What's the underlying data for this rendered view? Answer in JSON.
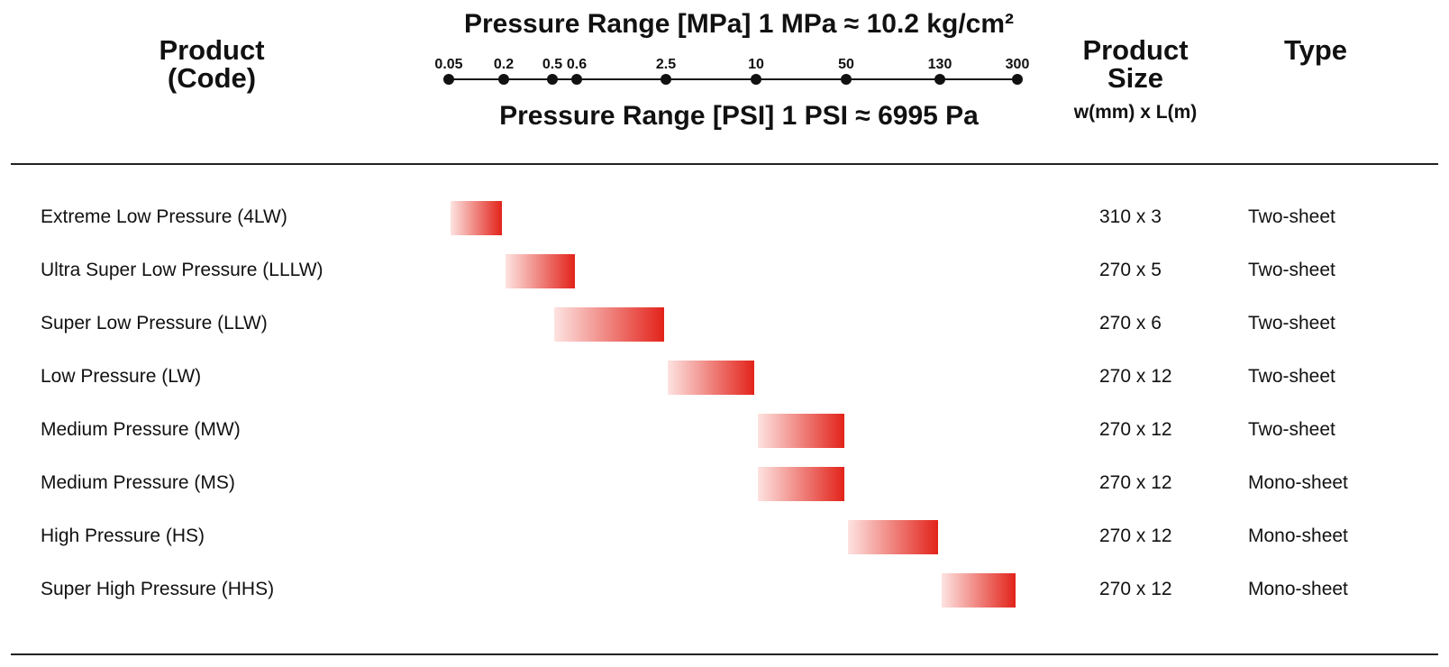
{
  "headers": {
    "product_line1": "Product",
    "product_line2": "(Code)",
    "size_line1": "Product",
    "size_line2": "Size",
    "size_unit": "w(mm) x L(m)",
    "type": "Type"
  },
  "chart_data": {
    "type": "bar",
    "orientation": "horizontal-range",
    "title_top": "Pressure Range [MPa] 1 MPa ≈ 10.2 kg/cm²",
    "title_bottom": "Pressure Range [PSI] 1 PSI ≈ 6995 Pa",
    "ticks": [
      "0.05",
      "0.2",
      "0.5",
      "0.6",
      "2.5",
      "10",
      "50",
      "130",
      "300"
    ],
    "colors": {
      "bar_start": "#fde3e1",
      "bar_end": "#e2231a",
      "axis": "#111111"
    },
    "rows": [
      {
        "name": "Extreme Low Pressure (4LW)",
        "range": [
          "0.05",
          "0.2"
        ],
        "size": "310 x 3",
        "type": "Two-sheet"
      },
      {
        "name": "Ultra Super Low Pressure (LLLW)",
        "range": [
          "0.2",
          "0.6"
        ],
        "size": "270 x 5",
        "type": "Two-sheet"
      },
      {
        "name": "Super Low Pressure (LLW)",
        "range": [
          "0.5",
          "2.5"
        ],
        "size": "270 x 6",
        "type": "Two-sheet"
      },
      {
        "name": "Low Pressure (LW)",
        "range": [
          "2.5",
          "10"
        ],
        "size": "270 x 12",
        "type": "Two-sheet"
      },
      {
        "name": "Medium Pressure (MW)",
        "range": [
          "10",
          "50"
        ],
        "size": "270 x 12",
        "type": "Two-sheet"
      },
      {
        "name": "Medium Pressure (MS)",
        "range": [
          "10",
          "50"
        ],
        "size": "270 x 12",
        "type": "Mono-sheet"
      },
      {
        "name": "High Pressure (HS)",
        "range": [
          "50",
          "130"
        ],
        "size": "270 x 12",
        "type": "Mono-sheet"
      },
      {
        "name": "Super High Pressure (HHS)",
        "range": [
          "130",
          "300"
        ],
        "size": "270 x 12",
        "type": "Mono-sheet"
      }
    ]
  }
}
